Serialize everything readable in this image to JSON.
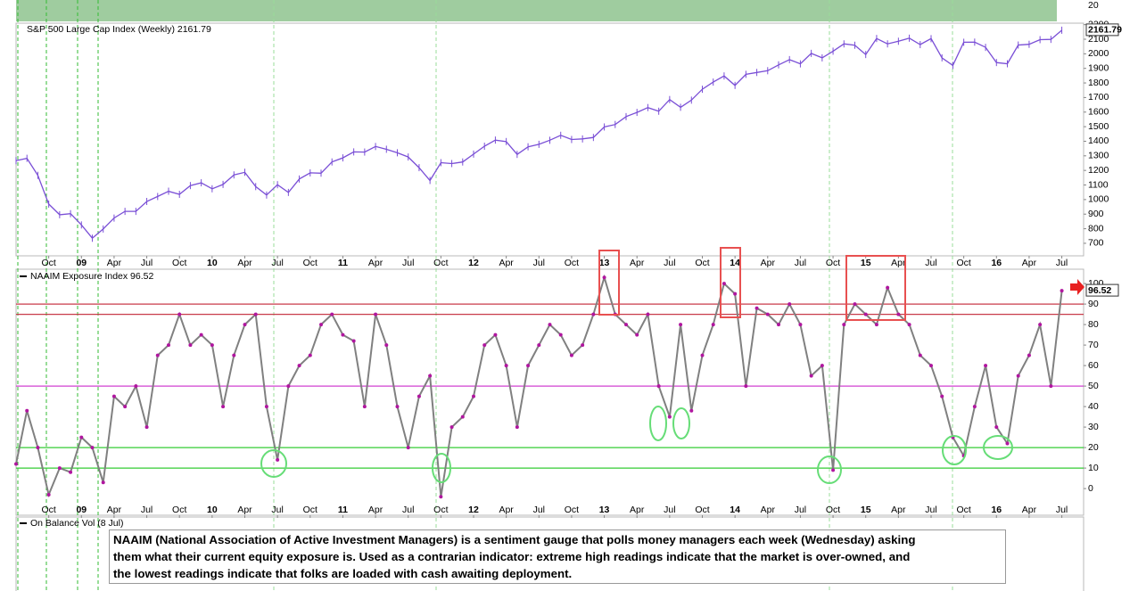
{
  "chart_data": [
    {
      "type": "line",
      "title": "S&P 500 Large Cap Index (Weekly) 2161.79",
      "color": "#7a4fd6",
      "x": [
        "2008-07",
        "2008-08",
        "2008-09",
        "2008-10",
        "2008-11",
        "2008-12",
        "2009-01",
        "2009-02",
        "2009-03",
        "2009-04",
        "2009-05",
        "2009-06",
        "2009-07",
        "2009-08",
        "2009-09",
        "2009-10",
        "2009-11",
        "2009-12",
        "2010-01",
        "2010-02",
        "2010-03",
        "2010-04",
        "2010-05",
        "2010-06",
        "2010-07",
        "2010-08",
        "2010-09",
        "2010-10",
        "2010-11",
        "2010-12",
        "2011-01",
        "2011-02",
        "2011-03",
        "2011-04",
        "2011-05",
        "2011-06",
        "2011-07",
        "2011-08",
        "2011-09",
        "2011-10",
        "2011-11",
        "2011-12",
        "2012-01",
        "2012-02",
        "2012-03",
        "2012-04",
        "2012-05",
        "2012-06",
        "2012-07",
        "2012-08",
        "2012-09",
        "2012-10",
        "2012-11",
        "2012-12",
        "2013-01",
        "2013-02",
        "2013-03",
        "2013-04",
        "2013-05",
        "2013-06",
        "2013-07",
        "2013-08",
        "2013-09",
        "2013-10",
        "2013-11",
        "2013-12",
        "2014-01",
        "2014-02",
        "2014-03",
        "2014-04",
        "2014-05",
        "2014-06",
        "2014-07",
        "2014-08",
        "2014-09",
        "2014-10",
        "2014-11",
        "2014-12",
        "2015-01",
        "2015-02",
        "2015-03",
        "2015-04",
        "2015-05",
        "2015-06",
        "2015-07",
        "2015-08",
        "2015-09",
        "2015-10",
        "2015-11",
        "2015-12",
        "2016-01",
        "2016-02",
        "2016-03",
        "2016-04",
        "2016-05",
        "2016-06",
        "2016-07"
      ],
      "values": [
        1267,
        1283,
        1166,
        969,
        896,
        903,
        826,
        735,
        798,
        873,
        919,
        919,
        987,
        1021,
        1057,
        1036,
        1096,
        1115,
        1074,
        1104,
        1169,
        1187,
        1089,
        1031,
        1102,
        1049,
        1141,
        1183,
        1181,
        1258,
        1286,
        1327,
        1326,
        1364,
        1345,
        1321,
        1292,
        1219,
        1131,
        1253,
        1247,
        1258,
        1312,
        1366,
        1408,
        1398,
        1310,
        1362,
        1379,
        1407,
        1441,
        1412,
        1416,
        1426,
        1498,
        1515,
        1569,
        1598,
        1631,
        1606,
        1686,
        1633,
        1682,
        1757,
        1806,
        1848,
        1783,
        1859,
        1872,
        1884,
        1924,
        1960,
        1931,
        2003,
        1972,
        2018,
        2068,
        2059,
        1995,
        2105,
        2068,
        2086,
        2107,
        2063,
        2104,
        1972,
        1920,
        2079,
        2080,
        2044,
        1940,
        1932,
        2060,
        2065,
        2097,
        2099,
        2161.79
      ],
      "xlim": [
        "2008-07",
        "2016-09"
      ],
      "xticks": [
        {
          "value": "2008-10",
          "label": "Oct"
        },
        {
          "value": "2009-01",
          "label": "09"
        },
        {
          "value": "2009-04",
          "label": "Apr"
        },
        {
          "value": "2009-07",
          "label": "Jul"
        },
        {
          "value": "2009-10",
          "label": "Oct"
        },
        {
          "value": "2010-01",
          "label": "10"
        },
        {
          "value": "2010-04",
          "label": "Apr"
        },
        {
          "value": "2010-07",
          "label": "Jul"
        },
        {
          "value": "2010-10",
          "label": "Oct"
        },
        {
          "value": "2011-01",
          "label": "11"
        },
        {
          "value": "2011-04",
          "label": "Apr"
        },
        {
          "value": "2011-07",
          "label": "Jul"
        },
        {
          "value": "2011-10",
          "label": "Oct"
        },
        {
          "value": "2012-01",
          "label": "12"
        },
        {
          "value": "2012-04",
          "label": "Apr"
        },
        {
          "value": "2012-07",
          "label": "Jul"
        },
        {
          "value": "2012-10",
          "label": "Oct"
        },
        {
          "value": "2013-01",
          "label": "13"
        },
        {
          "value": "2013-04",
          "label": "Apr"
        },
        {
          "value": "2013-07",
          "label": "Jul"
        },
        {
          "value": "2013-10",
          "label": "Oct"
        },
        {
          "value": "2014-01",
          "label": "14"
        },
        {
          "value": "2014-04",
          "label": "Apr"
        },
        {
          "value": "2014-07",
          "label": "Jul"
        },
        {
          "value": "2014-10",
          "label": "Oct"
        },
        {
          "value": "2015-01",
          "label": "15"
        },
        {
          "value": "2015-04",
          "label": "Apr"
        },
        {
          "value": "2015-07",
          "label": "Jul"
        },
        {
          "value": "2015-10",
          "label": "Oct"
        },
        {
          "value": "2016-01",
          "label": "16"
        },
        {
          "value": "2016-04",
          "label": "Apr"
        },
        {
          "value": "2016-07",
          "label": "Jul"
        }
      ],
      "ylim": [
        614,
        2210
      ],
      "yticks": [
        700,
        800,
        900,
        1000,
        1100,
        1200,
        1300,
        1400,
        1500,
        1600,
        1700,
        1800,
        1900,
        2000,
        2100,
        2200
      ]
    },
    {
      "type": "line",
      "title": "NAAIM Exposure Index 96.52",
      "color": "#808080",
      "marker_color": "#b0169f",
      "x": [
        "2008-07",
        "2008-08",
        "2008-09",
        "2008-10",
        "2008-11",
        "2008-12",
        "2009-01",
        "2009-02",
        "2009-03",
        "2009-04",
        "2009-05",
        "2009-06",
        "2009-07",
        "2009-08",
        "2009-09",
        "2009-10",
        "2009-11",
        "2009-12",
        "2010-01",
        "2010-02",
        "2010-03",
        "2010-04",
        "2010-05",
        "2010-06",
        "2010-07",
        "2010-08",
        "2010-09",
        "2010-10",
        "2010-11",
        "2010-12",
        "2011-01",
        "2011-02",
        "2011-03",
        "2011-04",
        "2011-05",
        "2011-06",
        "2011-07",
        "2011-08",
        "2011-09",
        "2011-10",
        "2011-11",
        "2011-12",
        "2012-01",
        "2012-02",
        "2012-03",
        "2012-04",
        "2012-05",
        "2012-06",
        "2012-07",
        "2012-08",
        "2012-09",
        "2012-10",
        "2012-11",
        "2012-12",
        "2013-01",
        "2013-02",
        "2013-03",
        "2013-04",
        "2013-05",
        "2013-06",
        "2013-07",
        "2013-08",
        "2013-09",
        "2013-10",
        "2013-11",
        "2013-12",
        "2014-01",
        "2014-02",
        "2014-03",
        "2014-04",
        "2014-05",
        "2014-06",
        "2014-07",
        "2014-08",
        "2014-09",
        "2014-10",
        "2014-11",
        "2014-12",
        "2015-01",
        "2015-02",
        "2015-03",
        "2015-04",
        "2015-05",
        "2015-06",
        "2015-07",
        "2015-08",
        "2015-09",
        "2015-10",
        "2015-11",
        "2015-12",
        "2016-01",
        "2016-02",
        "2016-03",
        "2016-04",
        "2016-05",
        "2016-06",
        "2016-07"
      ],
      "values": [
        12,
        38,
        20,
        -3,
        10,
        8,
        25,
        20,
        3,
        45,
        40,
        50,
        30,
        65,
        70,
        85,
        70,
        75,
        70,
        40,
        65,
        80,
        85,
        40,
        14,
        50,
        60,
        65,
        80,
        85,
        75,
        72,
        40,
        85,
        70,
        40,
        20,
        45,
        55,
        -4,
        30,
        35,
        45,
        70,
        75,
        60,
        30,
        60,
        70,
        80,
        75,
        65,
        70,
        85,
        103,
        85,
        80,
        75,
        85,
        50,
        35,
        80,
        38,
        65,
        80,
        100,
        95,
        50,
        88,
        85,
        80,
        90,
        80,
        55,
        60,
        9,
        80,
        90,
        85,
        80,
        98,
        85,
        80,
        65,
        60,
        45,
        25,
        16,
        40,
        60,
        30,
        22,
        55,
        65,
        80,
        50,
        96.52
      ],
      "xlim": [
        "2008-07",
        "2016-09"
      ],
      "xticks": [
        {
          "value": "2008-10",
          "label": "Oct"
        },
        {
          "value": "2009-01",
          "label": "09"
        },
        {
          "value": "2009-04",
          "label": "Apr"
        },
        {
          "value": "2009-07",
          "label": "Jul"
        },
        {
          "value": "2009-10",
          "label": "Oct"
        },
        {
          "value": "2010-01",
          "label": "10"
        },
        {
          "value": "2010-04",
          "label": "Apr"
        },
        {
          "value": "2010-07",
          "label": "Jul"
        },
        {
          "value": "2010-10",
          "label": "Oct"
        },
        {
          "value": "2011-01",
          "label": "11"
        },
        {
          "value": "2011-04",
          "label": "Apr"
        },
        {
          "value": "2011-07",
          "label": "Jul"
        },
        {
          "value": "2011-10",
          "label": "Oct"
        },
        {
          "value": "2012-01",
          "label": "12"
        },
        {
          "value": "2012-04",
          "label": "Apr"
        },
        {
          "value": "2012-07",
          "label": "Jul"
        },
        {
          "value": "2012-10",
          "label": "Oct"
        },
        {
          "value": "2013-01",
          "label": "13"
        },
        {
          "value": "2013-04",
          "label": "Apr"
        },
        {
          "value": "2013-07",
          "label": "Jul"
        },
        {
          "value": "2013-10",
          "label": "Oct"
        },
        {
          "value": "2014-01",
          "label": "14"
        },
        {
          "value": "2014-04",
          "label": "Apr"
        },
        {
          "value": "2014-07",
          "label": "Jul"
        },
        {
          "value": "2014-10",
          "label": "Oct"
        },
        {
          "value": "2015-01",
          "label": "15"
        },
        {
          "value": "2015-04",
          "label": "Apr"
        },
        {
          "value": "2015-07",
          "label": "Jul"
        },
        {
          "value": "2015-10",
          "label": "Oct"
        },
        {
          "value": "2016-01",
          "label": "16"
        },
        {
          "value": "2016-04",
          "label": "Apr"
        },
        {
          "value": "2016-07",
          "label": "Jul"
        }
      ],
      "ylim": [
        -13,
        107
      ],
      "yticks": [
        0,
        10,
        20,
        30,
        40,
        50,
        60,
        70,
        80,
        90,
        100
      ],
      "reference_lines": [
        {
          "value": 90,
          "color": "#c83a4a"
        },
        {
          "value": 85,
          "color": "#c83a4a"
        },
        {
          "value": 50,
          "color": "#d040d0"
        },
        {
          "value": 20,
          "color": "#33cc33"
        },
        {
          "value": 10,
          "color": "#33cc33"
        }
      ]
    }
  ],
  "top_strip": {
    "ytick": 20
  },
  "obv_panel": {
    "title": "On Balance Vol (8 Jul)"
  },
  "annotation_lines": [
    "NAAIM (National Association of Active Investment Managers) is a sentiment gauge that polls money managers each week (Wednesday) asking",
    "them what their current equity exposure is. Used as a contrarian indicator: extreme high readings indicate that the market is over-owned, and",
    "the lowest readings indicate that folks are loaded with cash awaiting deployment."
  ]
}
